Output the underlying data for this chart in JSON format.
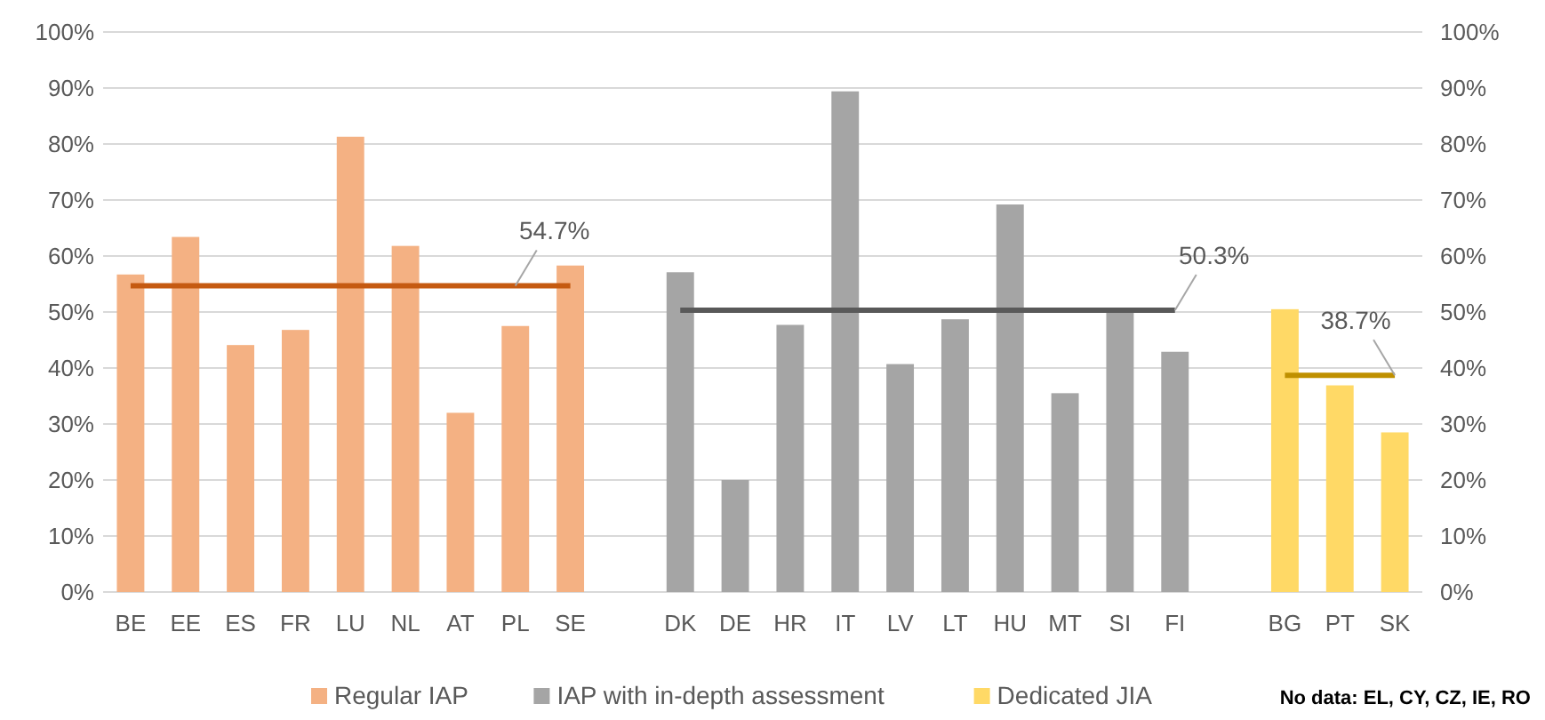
{
  "chart_data": {
    "type": "bar",
    "categories": [
      "BE",
      "EE",
      "ES",
      "FR",
      "LU",
      "NL",
      "AT",
      "PL",
      "SE",
      "DK",
      "DE",
      "HR",
      "IT",
      "LV",
      "LT",
      "HU",
      "MT",
      "SI",
      "FI",
      "BG",
      "PT",
      "SK"
    ],
    "series": [
      {
        "name": "Regular IAP",
        "color": "#f4b183",
        "values": [
          56.7,
          63.4,
          44.1,
          46.8,
          81.3,
          61.8,
          32.0,
          47.5,
          58.3,
          null,
          null,
          null,
          null,
          null,
          null,
          null,
          null,
          null,
          null,
          null,
          null,
          null
        ]
      },
      {
        "name": "IAP with in-depth assessment",
        "color": "#a5a5a5",
        "values": [
          null,
          null,
          null,
          null,
          null,
          null,
          null,
          null,
          null,
          57.1,
          20.0,
          47.7,
          89.4,
          40.7,
          48.7,
          69.2,
          35.5,
          50.4,
          42.9,
          null,
          null,
          null
        ]
      },
      {
        "name": "Dedicated JIA",
        "color": "#ffd966",
        "values": [
          null,
          null,
          null,
          null,
          null,
          null,
          null,
          null,
          null,
          null,
          null,
          null,
          null,
          null,
          null,
          null,
          null,
          null,
          null,
          50.5,
          36.9,
          28.5
        ]
      },
      {
        "type": "line",
        "color": "#c55a11",
        "values": [
          54.7,
          54.7,
          54.7,
          54.7,
          54.7,
          54.7,
          54.7,
          54.7,
          54.7,
          null,
          null,
          null,
          null,
          null,
          null,
          null,
          null,
          null,
          null,
          null,
          null,
          null
        ]
      },
      {
        "type": "line",
        "color": "#595959",
        "values": [
          null,
          null,
          null,
          null,
          null,
          null,
          null,
          null,
          null,
          50.3,
          50.3,
          50.3,
          50.3,
          50.3,
          50.3,
          50.3,
          50.3,
          50.3,
          50.3,
          null,
          null,
          null
        ]
      },
      {
        "type": "line",
        "color": "#bf9000",
        "values": [
          null,
          null,
          null,
          null,
          null,
          null,
          null,
          null,
          null,
          null,
          null,
          null,
          null,
          null,
          null,
          null,
          null,
          null,
          null,
          38.7,
          38.7,
          38.7
        ]
      }
    ],
    "ylim": [
      0,
      100
    ],
    "yticks": [
      {
        "value": 0,
        "label": "0%"
      },
      {
        "value": 10,
        "label": "10%"
      },
      {
        "value": 20,
        "label": "20%"
      },
      {
        "value": 30,
        "label": "30%"
      },
      {
        "value": 40,
        "label": "40%"
      },
      {
        "value": 50,
        "label": "50%"
      },
      {
        "value": 60,
        "label": "60%"
      },
      {
        "value": 70,
        "label": "70%"
      },
      {
        "value": 80,
        "label": "80%"
      },
      {
        "value": 90,
        "label": "90%"
      },
      {
        "value": 100,
        "label": "100%"
      }
    ],
    "y2lim": [
      0,
      100
    ],
    "y2ticks": [
      {
        "value": 0,
        "label": "0%"
      },
      {
        "value": 10,
        "label": "10%"
      },
      {
        "value": 20,
        "label": "20%"
      },
      {
        "value": 30,
        "label": "30%"
      },
      {
        "value": 40,
        "label": "40%"
      },
      {
        "value": 50,
        "label": "50%"
      },
      {
        "value": 60,
        "label": "60%"
      },
      {
        "value": 70,
        "label": "70%"
      },
      {
        "value": 80,
        "label": "80%"
      },
      {
        "value": 90,
        "label": "90%"
      },
      {
        "value": 100,
        "label": "100%"
      }
    ],
    "annotations": [
      {
        "text": "54.7%",
        "x": "PL",
        "y": 54.7
      },
      {
        "text": "50.3%",
        "x": "FI",
        "y": 50.3
      },
      {
        "text": "38.7%",
        "x": "SK",
        "y": 38.7
      },
      "No data: EL, CY, CZ, IE, RO"
    ],
    "grid": "y",
    "legend": "bottom",
    "marker": "none",
    "line_style": "solid"
  }
}
